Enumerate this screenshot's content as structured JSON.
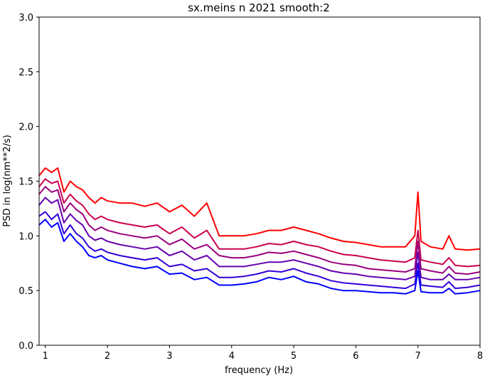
{
  "chart_data": {
    "type": "line",
    "title": "sx.meins n 2021 smooth:2",
    "xlabel": "frequency (Hz)",
    "ylabel": "PSD in log(nm**2/s)",
    "xlim": [
      0.9,
      8.0
    ],
    "ylim": [
      0.0,
      3.0
    ],
    "xticks": [
      "1",
      "2",
      "3",
      "4",
      "5",
      "6",
      "7",
      "8"
    ],
    "yticks": [
      "0.0",
      "0.5",
      "1.0",
      "1.5",
      "2.0",
      "2.5",
      "3.0"
    ],
    "grid": false,
    "legend": "none",
    "x": [
      0.9,
      1.0,
      1.1,
      1.2,
      1.3,
      1.4,
      1.5,
      1.6,
      1.7,
      1.8,
      1.9,
      2.0,
      2.2,
      2.4,
      2.6,
      2.8,
      3.0,
      3.2,
      3.4,
      3.6,
      3.8,
      4.0,
      4.2,
      4.4,
      4.6,
      4.8,
      5.0,
      5.2,
      5.4,
      5.6,
      5.8,
      6.0,
      6.2,
      6.4,
      6.6,
      6.8,
      6.95,
      7.0,
      7.05,
      7.2,
      7.4,
      7.5,
      7.6,
      7.8,
      8.0
    ],
    "series": [
      {
        "color": "#ff0000",
        "values": [
          1.55,
          1.62,
          1.58,
          1.62,
          1.4,
          1.5,
          1.45,
          1.42,
          1.35,
          1.3,
          1.35,
          1.32,
          1.3,
          1.3,
          1.27,
          1.3,
          1.22,
          1.28,
          1.18,
          1.3,
          1.0,
          1.0,
          1.0,
          1.02,
          1.05,
          1.05,
          1.08,
          1.05,
          1.02,
          0.98,
          0.95,
          0.94,
          0.92,
          0.9,
          0.9,
          0.9,
          1.0,
          1.4,
          0.95,
          0.9,
          0.88,
          1.0,
          0.88,
          0.87,
          0.88
        ]
      },
      {
        "color": "#cc0050",
        "values": [
          1.45,
          1.52,
          1.48,
          1.5,
          1.3,
          1.38,
          1.32,
          1.28,
          1.2,
          1.15,
          1.18,
          1.15,
          1.12,
          1.1,
          1.08,
          1.1,
          1.02,
          1.08,
          0.98,
          1.05,
          0.88,
          0.88,
          0.88,
          0.9,
          0.93,
          0.92,
          0.95,
          0.92,
          0.9,
          0.86,
          0.83,
          0.82,
          0.8,
          0.78,
          0.77,
          0.76,
          0.8,
          1.05,
          0.78,
          0.76,
          0.74,
          0.8,
          0.73,
          0.72,
          0.73
        ]
      },
      {
        "color": "#990080",
        "values": [
          1.38,
          1.45,
          1.4,
          1.42,
          1.22,
          1.3,
          1.24,
          1.2,
          1.1,
          1.05,
          1.08,
          1.05,
          1.02,
          1.0,
          0.98,
          1.0,
          0.92,
          0.97,
          0.88,
          0.92,
          0.82,
          0.8,
          0.8,
          0.82,
          0.85,
          0.84,
          0.86,
          0.83,
          0.8,
          0.76,
          0.74,
          0.73,
          0.7,
          0.69,
          0.68,
          0.67,
          0.7,
          0.95,
          0.7,
          0.68,
          0.66,
          0.72,
          0.66,
          0.65,
          0.67
        ]
      },
      {
        "color": "#6600b0",
        "values": [
          1.28,
          1.35,
          1.3,
          1.33,
          1.12,
          1.2,
          1.14,
          1.1,
          1.0,
          0.96,
          0.98,
          0.95,
          0.92,
          0.9,
          0.88,
          0.9,
          0.82,
          0.86,
          0.78,
          0.82,
          0.72,
          0.72,
          0.72,
          0.74,
          0.76,
          0.76,
          0.78,
          0.75,
          0.72,
          0.68,
          0.66,
          0.65,
          0.63,
          0.62,
          0.61,
          0.6,
          0.63,
          0.85,
          0.62,
          0.6,
          0.6,
          0.65,
          0.6,
          0.6,
          0.62
        ]
      },
      {
        "color": "#3300d8",
        "values": [
          1.18,
          1.22,
          1.15,
          1.2,
          1.02,
          1.1,
          1.02,
          0.98,
          0.9,
          0.86,
          0.88,
          0.85,
          0.82,
          0.8,
          0.78,
          0.8,
          0.72,
          0.74,
          0.68,
          0.7,
          0.62,
          0.62,
          0.63,
          0.65,
          0.68,
          0.67,
          0.7,
          0.66,
          0.63,
          0.59,
          0.57,
          0.56,
          0.55,
          0.54,
          0.53,
          0.52,
          0.56,
          0.75,
          0.55,
          0.54,
          0.53,
          0.58,
          0.52,
          0.53,
          0.55
        ]
      },
      {
        "color": "#0000ff",
        "values": [
          1.1,
          1.15,
          1.08,
          1.12,
          0.95,
          1.02,
          0.95,
          0.9,
          0.82,
          0.8,
          0.82,
          0.78,
          0.75,
          0.72,
          0.7,
          0.72,
          0.65,
          0.66,
          0.6,
          0.62,
          0.55,
          0.55,
          0.56,
          0.58,
          0.62,
          0.6,
          0.63,
          0.58,
          0.56,
          0.52,
          0.5,
          0.5,
          0.49,
          0.48,
          0.48,
          0.47,
          0.5,
          0.68,
          0.49,
          0.48,
          0.48,
          0.52,
          0.47,
          0.48,
          0.5
        ]
      }
    ]
  }
}
